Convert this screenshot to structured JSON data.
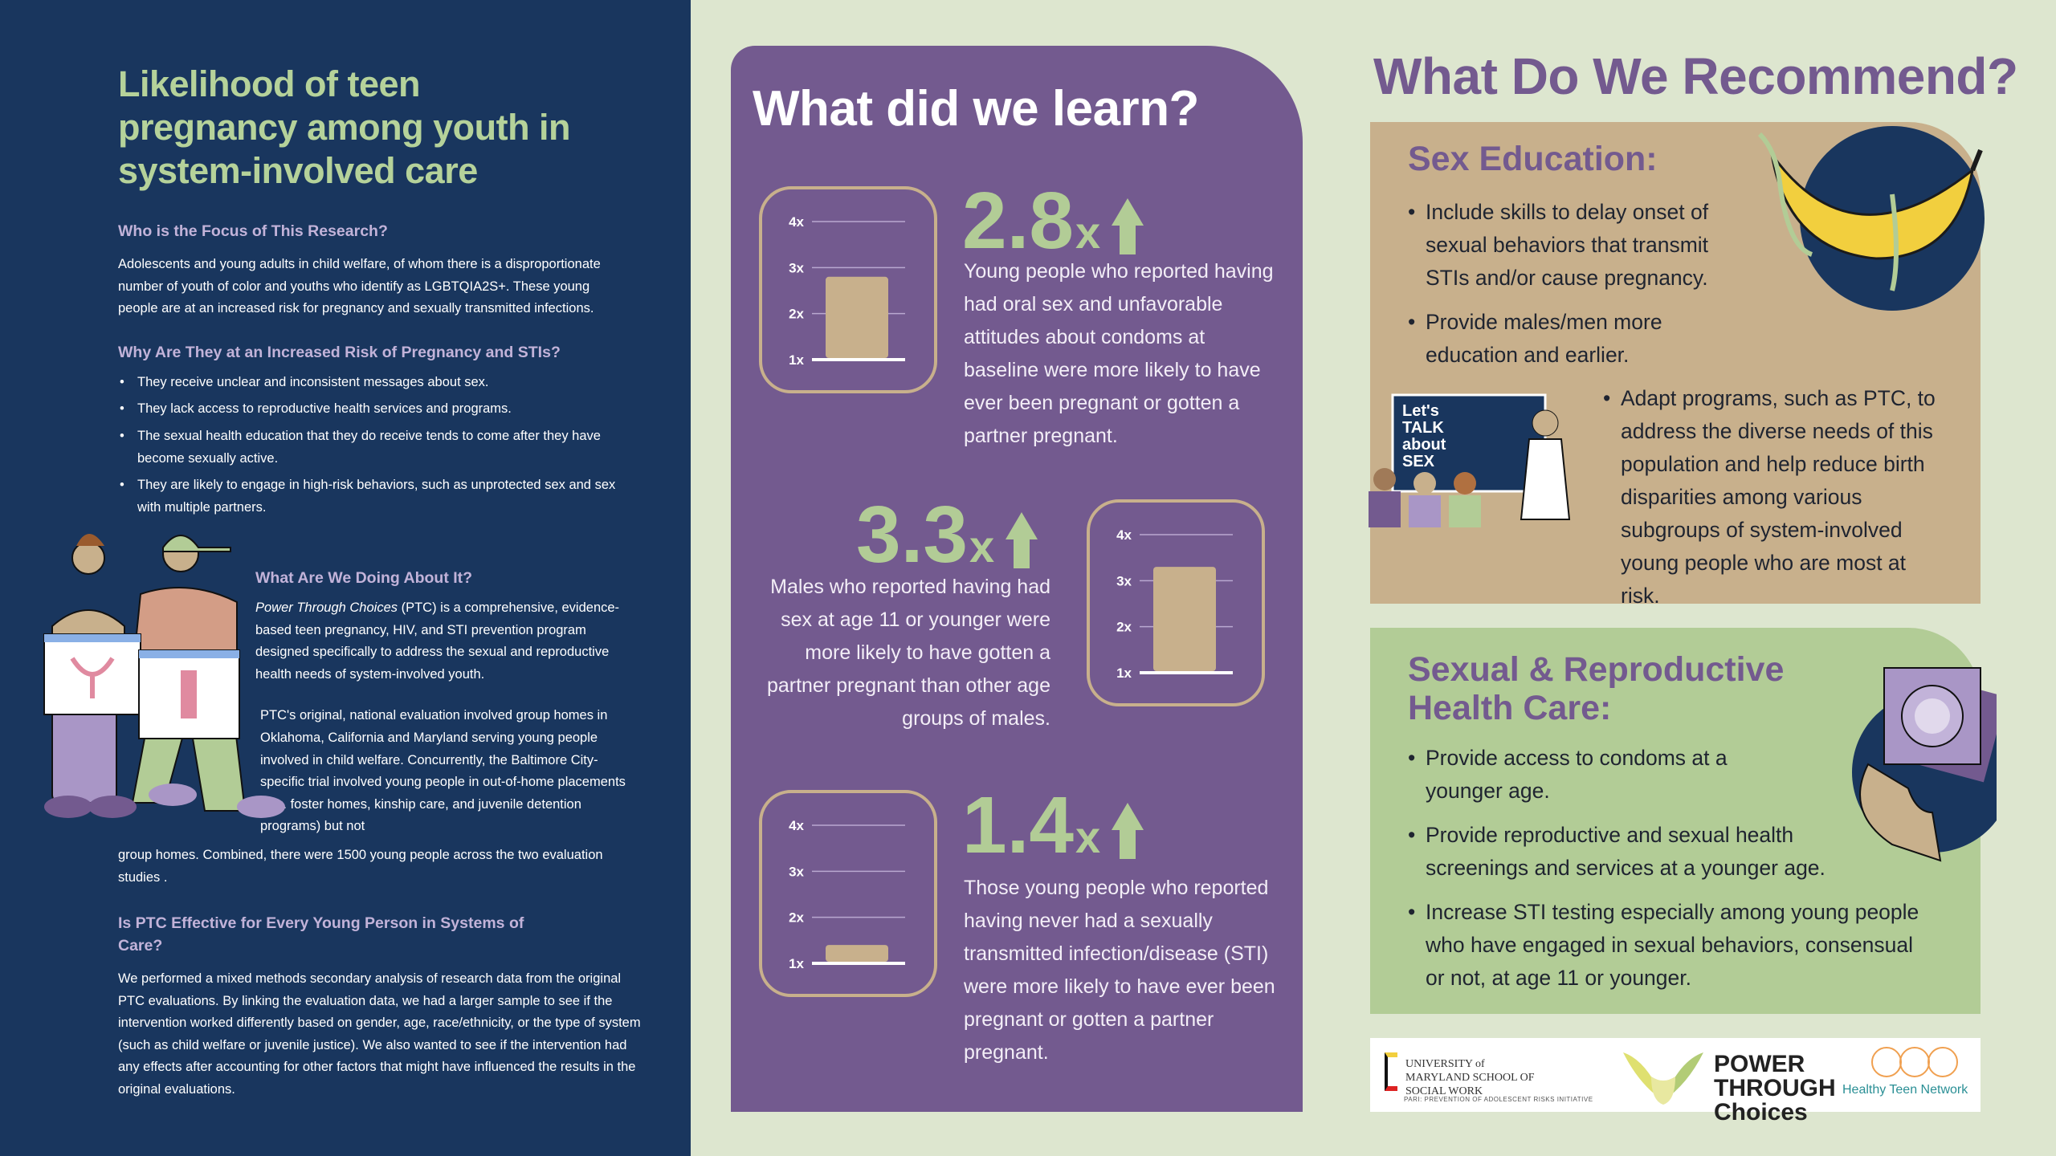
{
  "left": {
    "title": "Likelihood of teen pregnancy among youth in system-involved care",
    "focus_heading": "Who is the Focus of This Research?",
    "focus_body": "Adolescents and young adults in child welfare, of whom there is a disproportionate number of youth of color and youths who identify as LGBTQIA2S+. These young people are at an increased risk for pregnancy and sexually transmitted infections.",
    "risk_heading": "Why Are They at an Increased Risk of Pregnancy and STIs?",
    "risk_items": [
      "They receive unclear and inconsistent messages about sex.",
      "They lack access to reproductive health services and programs.",
      "The sexual health education that they do receive tends to come after they have become sexually active.",
      "They are likely to engage in high-risk behaviors, such as unprotected sex and sex with multiple partners."
    ],
    "doing_heading": "What Are We Doing About It?",
    "doing_program_name": "Power Through Choices",
    "doing_body_1": " (PTC) is a comprehensive, evidence-based teen pregnancy, HIV, and STI prevention program designed specifically to address the sexual and reproductive health needs of system-involved youth.",
    "doing_body_2a": "PTC's original, national evaluation involved group homes in Oklahoma, California and Maryland serving young people involved in child welfare. Concurrently, the Baltimore City- specific trial involved young people in out-of-home placements (e.g. foster homes, kinship care, and juvenile detention programs) but not",
    "doing_body_2b": "group homes. Combined, there were 1500 young people across the two evaluation studies .",
    "effective_heading": "Is PTC Effective for Every Young Person in Systems of Care?",
    "effective_body": "We performed a mixed methods secondary analysis of research data from the original PTC evaluations. By linking the evaluation data, we had a larger sample to see if the intervention worked differently based on gender, age, race/ethnicity, or the type of system (such as child welfare or juvenile justice). We also wanted to see if the intervention had any effects after accounting for other factors that might have influenced the results in the original evaluations."
  },
  "learn": {
    "title": "What did we learn?",
    "stats": [
      {
        "value": "2.8",
        "unit": "x",
        "text": "Young people who reported having had oral sex and unfavorable attitudes about condoms at baseline were more likely to have ever been pregnant or gotten a partner pregnant."
      },
      {
        "value": "3.3",
        "unit": "x",
        "text": "Males who reported having had sex at age 11 or younger were more likely to have gotten a partner pregnant than other age groups of males."
      },
      {
        "value": "1.4",
        "unit": "x",
        "text": "Those young people who reported having never had a sexually transmitted infection/disease (STI) were more likely to have ever been pregnant or gotten a partner pregnant."
      }
    ]
  },
  "chart_data": [
    {
      "type": "bar",
      "categories": [
        ""
      ],
      "values": [
        2.8
      ],
      "ylim": [
        1,
        4
      ],
      "yticks": [
        "1x",
        "2x",
        "3x",
        "4x"
      ],
      "grid": true
    },
    {
      "type": "bar",
      "categories": [
        ""
      ],
      "values": [
        3.3
      ],
      "ylim": [
        1,
        4
      ],
      "yticks": [
        "1x",
        "2x",
        "3x",
        "4x"
      ],
      "grid": true
    },
    {
      "type": "bar",
      "categories": [
        ""
      ],
      "values": [
        1.4
      ],
      "ylim": [
        1,
        4
      ],
      "yticks": [
        "1x",
        "2x",
        "3x",
        "4x"
      ],
      "grid": true
    }
  ],
  "recommend": {
    "title": "What Do We Recommend?",
    "sex_ed": {
      "heading": "Sex Education:",
      "items": [
        "Include skills to delay onset of sexual behaviors that transmit STIs and/or cause pregnancy.",
        "Provide males/men more education and earlier.",
        "Adapt programs, such as PTC, to address the diverse needs of this population and help reduce birth disparities among various subgroups of system-involved young people who are most at risk."
      ],
      "board_text": "Let's TALK about SEX"
    },
    "health_care": {
      "heading": "Sexual & Reproductive Health Care:",
      "items": [
        "Provide access to condoms at a younger age.",
        "Provide reproductive and sexual health screenings and services at a younger age.",
        "Increase STI testing especially among young people who have engaged in sexual behaviors, consensual or not, at age 11 or younger."
      ]
    }
  },
  "logos": {
    "umd": "UNIVERSITY of MARYLAND SCHOOL OF SOCIAL WORK",
    "umd_sub": "PARI: PREVENTION OF ADOLESCENT RISKS INITIATIVE",
    "ptc": "POWER THROUGH Choices",
    "htn": "Healthy Teen Network"
  },
  "colors": {
    "navy": "#19365e",
    "purple": "#735a8f",
    "green": "#b2cc96",
    "tan": "#c8b08c",
    "background": "#dde6cf",
    "heading_lavender": "#c2b3d9"
  }
}
